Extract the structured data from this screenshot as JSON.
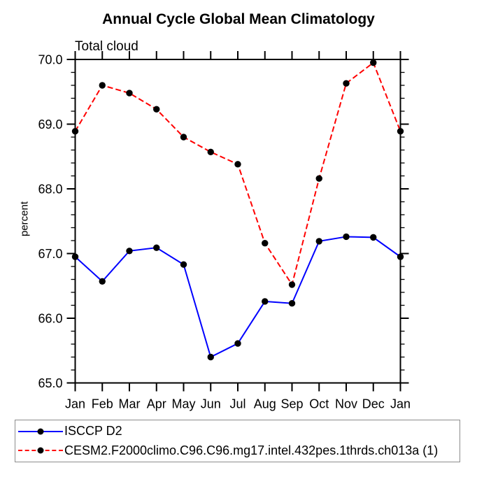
{
  "header": {
    "title": "Annual Cycle Global Mean Climatology",
    "subtitle": "Total cloud"
  },
  "chart_data": {
    "type": "line",
    "title": "Annual Cycle Global Mean Climatology",
    "subtitle": "Total cloud",
    "xlabel": "",
    "ylabel": "percent",
    "categories": [
      "Jan",
      "Feb",
      "Mar",
      "Apr",
      "May",
      "Jun",
      "Jul",
      "Aug",
      "Sep",
      "Oct",
      "Nov",
      "Dec",
      "Jan"
    ],
    "ylim": [
      65.0,
      70.0
    ],
    "ytick_labels": [
      "65.0",
      "66.0",
      "67.0",
      "68.0",
      "69.0",
      "70.0"
    ],
    "ytick_values": [
      65.0,
      66.0,
      67.0,
      68.0,
      69.0,
      70.0
    ],
    "ytick_minor_step": 0.2,
    "grid": false,
    "legend_position": "bottom-left-boxed",
    "frame_color": "#000000",
    "marker_shape": "filled-circle",
    "series": [
      {
        "name": "ISCCP D2",
        "color": "#0000ff",
        "line_style": "solid",
        "marker_color": "#000000",
        "values": [
          66.95,
          66.57,
          67.04,
          67.09,
          66.83,
          65.4,
          65.61,
          66.26,
          66.23,
          67.19,
          67.26,
          67.25,
          66.95
        ]
      },
      {
        "name": "CESM2.F2000climo.C96.C96.mg17.intel.432pes.1thrds.ch013a (1)",
        "color": "#ff0000",
        "line_style": "dashed",
        "marker_color": "#000000",
        "values": [
          68.89,
          69.6,
          69.48,
          69.23,
          68.8,
          68.57,
          68.38,
          67.16,
          66.52,
          68.16,
          69.63,
          69.95,
          68.89
        ]
      }
    ]
  }
}
